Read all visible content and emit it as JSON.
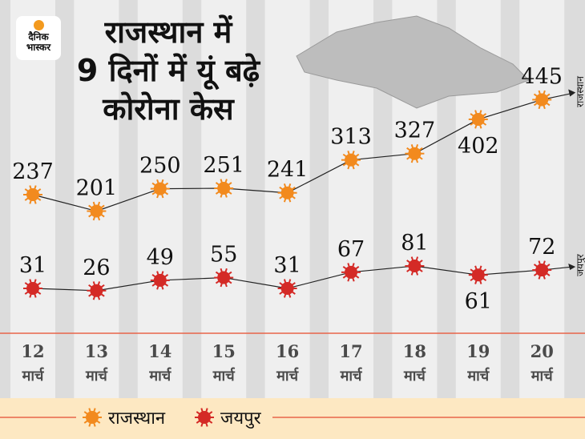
{
  "logo": {
    "line1": "दैनिक",
    "line2": "भास्कर"
  },
  "title": {
    "line1": "राजस्थान में",
    "line2": "9 दिनों में यूं बढ़े",
    "line3": "कोरोना केस"
  },
  "chart_data": {
    "type": "line",
    "categories": [
      {
        "day": "12",
        "month": "मार्च"
      },
      {
        "day": "13",
        "month": "मार्च"
      },
      {
        "day": "14",
        "month": "मार्च"
      },
      {
        "day": "15",
        "month": "मार्च"
      },
      {
        "day": "16",
        "month": "मार्च"
      },
      {
        "day": "17",
        "month": "मार्च"
      },
      {
        "day": "18",
        "month": "मार्च"
      },
      {
        "day": "19",
        "month": "मार्च"
      },
      {
        "day": "20",
        "month": "मार्च"
      }
    ],
    "series": [
      {
        "name": "राजस्थान",
        "color": "#f28a1e",
        "values": [
          237,
          201,
          250,
          251,
          241,
          313,
          327,
          402,
          445
        ]
      },
      {
        "name": "जयपुर",
        "color": "#d42a26",
        "values": [
          31,
          26,
          49,
          55,
          31,
          67,
          81,
          61,
          72
        ]
      }
    ],
    "legend_position": "bottom",
    "grid": false
  },
  "colors": {
    "baseline": "#e8654a",
    "legend_bg": "#fde8c2"
  }
}
